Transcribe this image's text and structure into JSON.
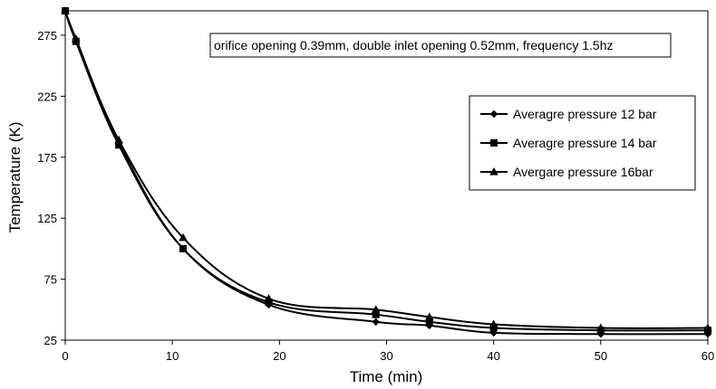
{
  "chart_data": {
    "type": "line",
    "xlabel": "Time  (min)",
    "ylabel": "Temperature  (K)",
    "xlim": [
      0,
      60
    ],
    "ylim": [
      25,
      295
    ],
    "xticks": [
      0,
      10,
      20,
      30,
      40,
      50,
      60
    ],
    "yticks": [
      25,
      75,
      125,
      175,
      225,
      275
    ],
    "grid": false,
    "legend_position": "right",
    "annotation": "orifice opening 0.39mm, double inlet opening 0.52mm, frequency 1.5hz",
    "series": [
      {
        "name": "Averagre pressure 12 bar",
        "marker": "diamond",
        "x": [
          0,
          1,
          5,
          11,
          19,
          29,
          34,
          40,
          50,
          60
        ],
        "y": [
          295,
          270,
          187,
          100,
          54,
          40,
          37,
          31,
          30,
          30
        ]
      },
      {
        "name": "Averagre pressure 14 bar",
        "marker": "square",
        "x": [
          0,
          1,
          5,
          11,
          19,
          29,
          34,
          40,
          50,
          60
        ],
        "y": [
          295,
          270,
          185,
          100,
          56,
          46,
          40,
          35,
          33,
          33
        ]
      },
      {
        "name": "Avergare pressure 16bar",
        "marker": "triangle",
        "x": [
          0,
          1,
          5,
          11,
          19,
          29,
          34,
          40,
          50,
          60
        ],
        "y": [
          295,
          272,
          189,
          109,
          59,
          50,
          44,
          38,
          35,
          35
        ]
      }
    ]
  }
}
